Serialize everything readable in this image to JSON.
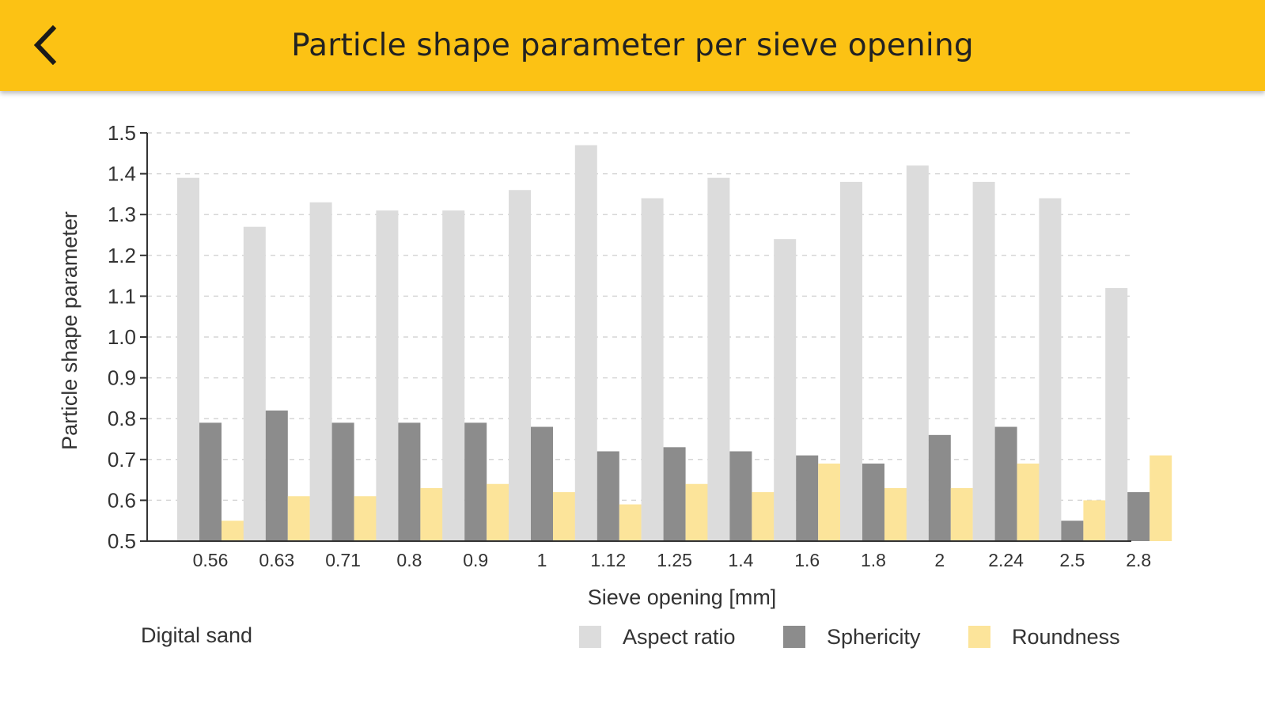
{
  "header": {
    "title": "Particle shape parameter per sieve opening",
    "back_icon": "chevron-left-icon",
    "background_color": "#fcc214"
  },
  "subset_label": "Digital sand",
  "legend": [
    {
      "label": "Aspect ratio",
      "color": "#dcdcdc"
    },
    {
      "label": "Sphericity",
      "color": "#8c8c8c"
    },
    {
      "label": "Roundness",
      "color": "#fce49a"
    }
  ],
  "chart_data": {
    "type": "bar",
    "xlabel": "Sieve opening [mm]",
    "ylabel": "Particle shape parameter",
    "ylim": [
      0.5,
      1.5
    ],
    "yticks": [
      0.5,
      0.6,
      0.7,
      0.8,
      0.9,
      1.0,
      1.1,
      1.2,
      1.3,
      1.4,
      1.5
    ],
    "ytick_labels": [
      "0.5",
      "0.6",
      "0.7",
      "0.8",
      "0.9",
      "1.0",
      "1.1",
      "1.2",
      "1.3",
      "1.4",
      "1.5"
    ],
    "grid": "horizontal-dashed",
    "legend_position": "bottom-right",
    "categories": [
      "0.56",
      "0.63",
      "0.71",
      "0.8",
      "0.9",
      "1",
      "1.12",
      "1.25",
      "1.4",
      "1.6",
      "1.8",
      "2",
      "2.24",
      "2.5",
      "2.8"
    ],
    "series": [
      {
        "name": "Aspect ratio",
        "color": "#dcdcdc",
        "values": [
          1.39,
          1.27,
          1.33,
          1.31,
          1.31,
          1.36,
          1.47,
          1.34,
          1.39,
          1.24,
          1.38,
          1.42,
          1.38,
          1.34,
          1.12
        ]
      },
      {
        "name": "Sphericity",
        "color": "#8c8c8c",
        "values": [
          0.79,
          0.82,
          0.79,
          0.79,
          0.79,
          0.78,
          0.72,
          0.73,
          0.72,
          0.71,
          0.69,
          0.76,
          0.78,
          0.55,
          0.62
        ]
      },
      {
        "name": "Roundness",
        "color": "#fce49a",
        "values": [
          0.55,
          0.61,
          0.61,
          0.63,
          0.64,
          0.62,
          0.59,
          0.64,
          0.62,
          0.69,
          0.63,
          0.63,
          0.69,
          0.6,
          0.71
        ]
      }
    ]
  }
}
